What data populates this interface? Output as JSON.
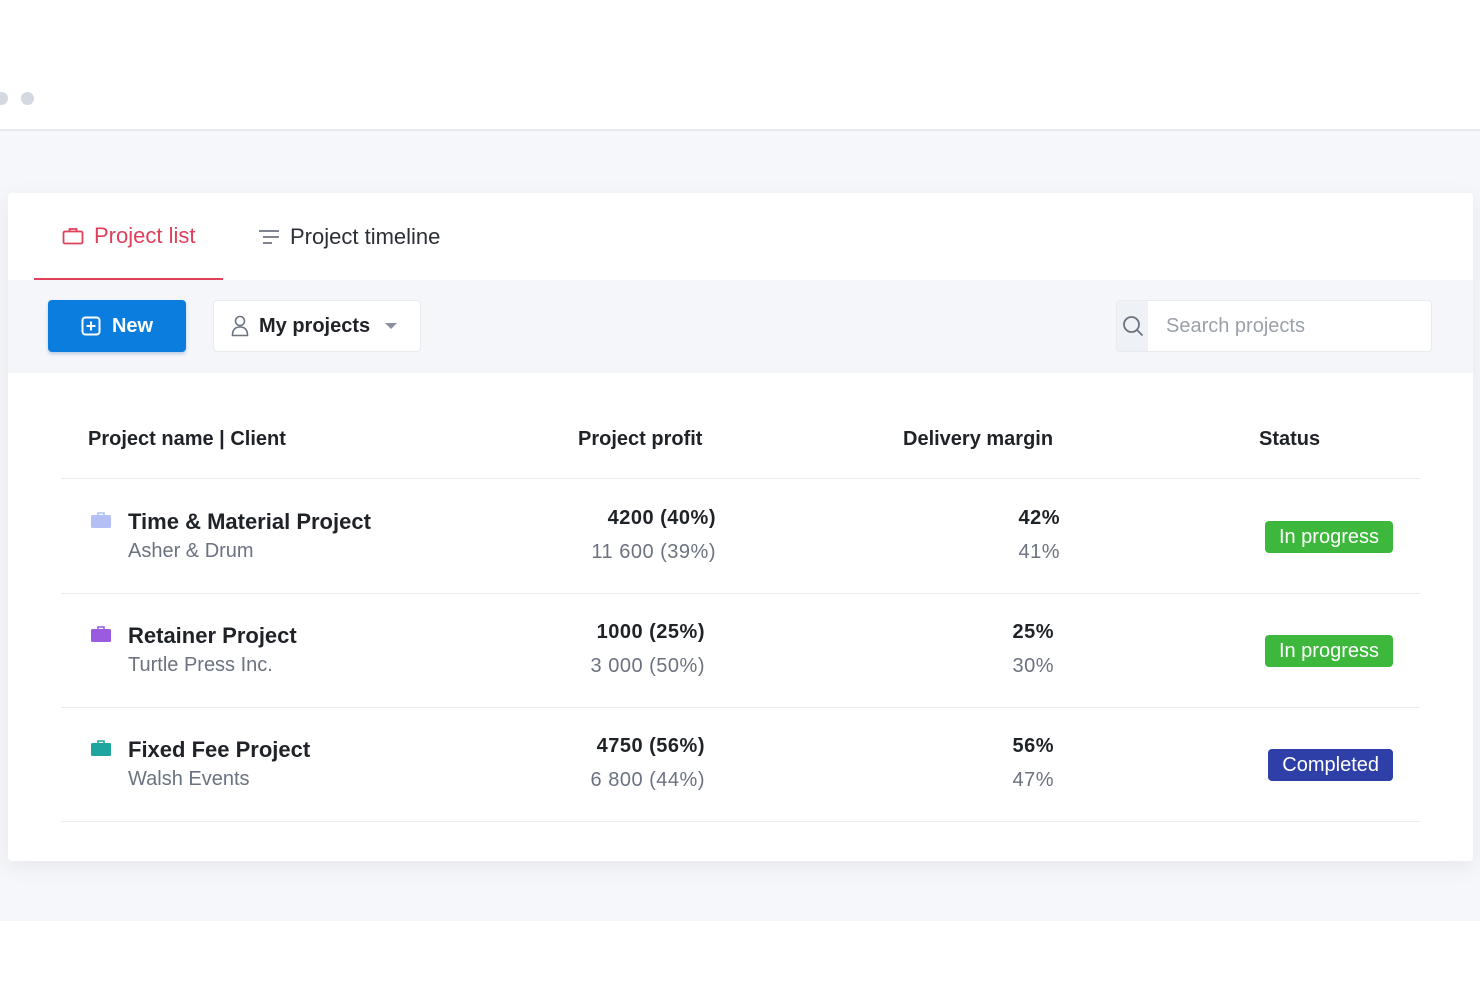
{
  "tabs": {
    "list_label": "Project list",
    "timeline_label": "Project timeline"
  },
  "toolbar": {
    "new_label": "New",
    "filter_label": "My projects",
    "search_placeholder": "Search projects"
  },
  "table": {
    "headers": {
      "name": "Project name | Client",
      "profit": "Project profit",
      "margin": "Delivery margin",
      "status": "Status"
    },
    "rows": [
      {
        "name": "Time & Material Project",
        "client": "Asher & Drum",
        "profit": "4200 (40%)",
        "profit_sub": "11 600 (39%)",
        "margin": "42%",
        "margin_sub": "41%",
        "status": "In progress",
        "status_color": "#3db83d",
        "icon_color": "#b4bff5"
      },
      {
        "name": "Retainer Project",
        "client": "Turtle Press Inc.",
        "profit": "1000 (25%)",
        "profit_sub": "3 000 (50%)",
        "margin": "25%",
        "margin_sub": "30%",
        "status": "In progress",
        "status_color": "#3db83d",
        "icon_color": "#9a5be0"
      },
      {
        "name": "Fixed Fee Project",
        "client": "Walsh Events",
        "profit": "4750 (56%)",
        "profit_sub": "6 800 (44%)",
        "margin": "56%",
        "margin_sub": "47%",
        "status": "Completed",
        "status_color": "#2f3fa8",
        "icon_color": "#1fa5a0"
      }
    ]
  },
  "colors": {
    "accent": "#e0405c",
    "primary": "#0a7ddf"
  }
}
